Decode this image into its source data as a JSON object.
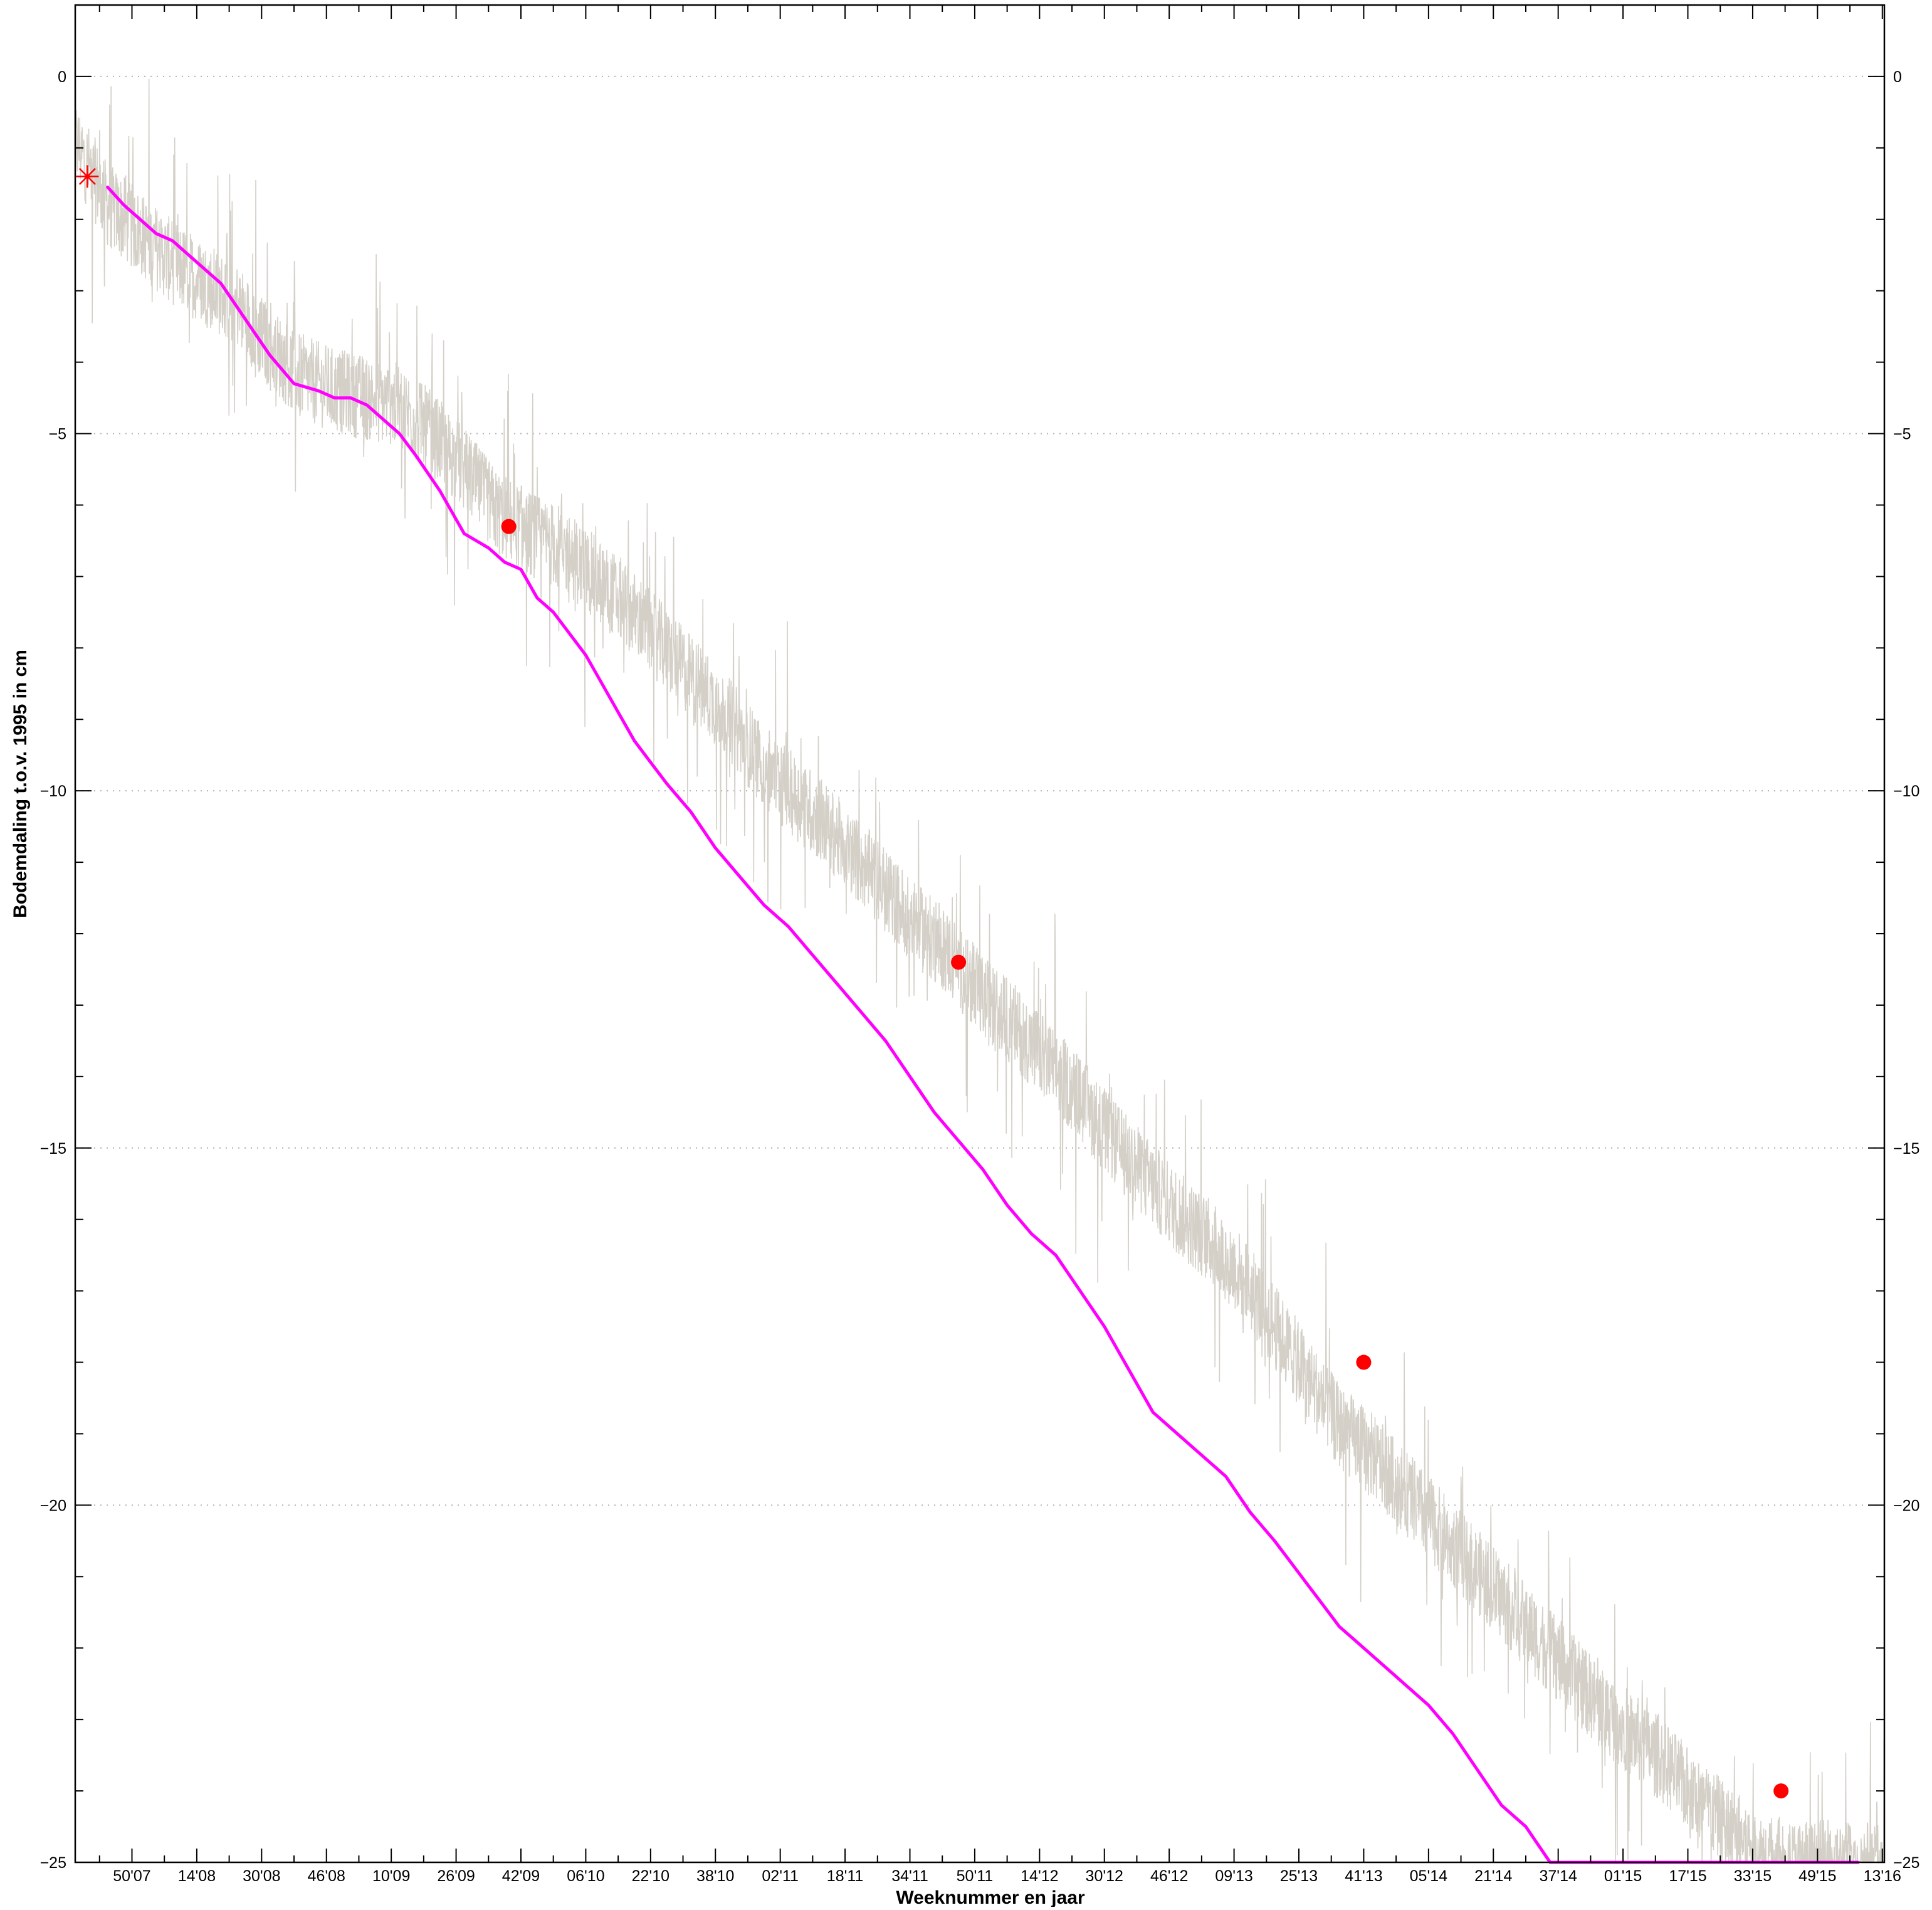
{
  "chart_data": {
    "type": "line",
    "title": "",
    "xlabel": "Weeknummer en jaar",
    "ylabel": "Bodemdaling t.o.v. 1995 in cm",
    "ylim": [
      -25,
      1
    ],
    "yticks": [
      0,
      -5,
      -10,
      -15,
      -20,
      -25
    ],
    "ytick_labels": [
      "0",
      "−5",
      "−10",
      "−15",
      "−20",
      "−25"
    ],
    "x_unit": "weeks since week 36 of 2007",
    "xlim": [
      0,
      446.5
    ],
    "xtick_positions": [
      14,
      30,
      46,
      62,
      78,
      94,
      110,
      126,
      142,
      158,
      174,
      190,
      206,
      222,
      238,
      254,
      270,
      286,
      302,
      318,
      334,
      350,
      366,
      382,
      398,
      414,
      430,
      446
    ],
    "xtick_labels": [
      "50'07",
      "14'08",
      "30'08",
      "46'08",
      "10'09",
      "26'09",
      "42'09",
      "06'10",
      "22'10",
      "38'10",
      "02'11",
      "18'11",
      "34'11",
      "50'11",
      "14'12",
      "30'12",
      "46'12",
      "09'13",
      "25'13",
      "41'13",
      "05'14",
      "21'14",
      "37'14",
      "01'15",
      "17'15",
      "33'15",
      "49'15",
      "13'16"
    ],
    "grid": true,
    "series": [
      {
        "name": "",
        "kind": "raw-measurements",
        "color": "#d4d0c8",
        "x": [
          0,
          8,
          16,
          24,
          32,
          40,
          48,
          56,
          64,
          72,
          80,
          88,
          96,
          104,
          112,
          120,
          128,
          136,
          144,
          152,
          160,
          168,
          176,
          184,
          192,
          200,
          208,
          216,
          224,
          232,
          240,
          248,
          256,
          264,
          272,
          280,
          288,
          296,
          304,
          312,
          320,
          328,
          336,
          344,
          352,
          360,
          368,
          376,
          384,
          392,
          400,
          408,
          416,
          424,
          432,
          440,
          446
        ],
        "y": [
          -0.9,
          -1.8,
          -2.2,
          -2.6,
          -2.9,
          -3.2,
          -3.8,
          -4.2,
          -4.4,
          -4.5,
          -4.6,
          -5.0,
          -5.5,
          -6.1,
          -6.4,
          -6.6,
          -7.0,
          -7.4,
          -7.9,
          -8.4,
          -8.9,
          -9.5,
          -10.0,
          -10.4,
          -10.9,
          -11.4,
          -11.9,
          -12.3,
          -12.9,
          -13.3,
          -13.8,
          -14.3,
          -14.9,
          -15.4,
          -15.9,
          -16.3,
          -16.8,
          -17.5,
          -18.2,
          -18.9,
          -19.3,
          -19.8,
          -20.3,
          -20.8,
          -21.3,
          -21.8,
          -22.3,
          -22.8,
          -23.2,
          -23.6,
          -24.1,
          -24.5,
          -24.9,
          -25.0,
          -25.0,
          -25.0,
          -25.0
        ],
        "noise_amplitude_cm": 0.6
      },
      {
        "name": "",
        "kind": "smoothed-trend",
        "color": "#ff00ff",
        "x": [
          8,
          12,
          16,
          20,
          24,
          30,
          36,
          42,
          48,
          54,
          60,
          64,
          68,
          72,
          76,
          80,
          84,
          90,
          96,
          102,
          106,
          110,
          114,
          118,
          122,
          126,
          130,
          134,
          138,
          142,
          146,
          152,
          158,
          164,
          170,
          176,
          182,
          188,
          194,
          200,
          206,
          212,
          218,
          224,
          230,
          236,
          242,
          248,
          254,
          260,
          266,
          272,
          278,
          284,
          290,
          296,
          300,
          304,
          308,
          312,
          316,
          322,
          328,
          334,
          340,
          346,
          352,
          358,
          364,
          370,
          376,
          382,
          388,
          394,
          400,
          406,
          412,
          418,
          424,
          430,
          436,
          440
        ],
        "y": [
          -1.55,
          -1.8,
          -2.0,
          -2.2,
          -2.3,
          -2.6,
          -2.9,
          -3.4,
          -3.9,
          -4.3,
          -4.4,
          -4.5,
          -4.5,
          -4.6,
          -4.8,
          -5.0,
          -5.3,
          -5.8,
          -6.4,
          -6.6,
          -6.8,
          -6.9,
          -7.3,
          -7.5,
          -7.8,
          -8.1,
          -8.5,
          -8.9,
          -9.3,
          -9.6,
          -9.9,
          -10.3,
          -10.8,
          -11.2,
          -11.6,
          -11.9,
          -12.3,
          -12.7,
          -13.1,
          -13.5,
          -14.0,
          -14.5,
          -14.9,
          -15.3,
          -15.8,
          -16.2,
          -16.5,
          -17.0,
          -17.5,
          -18.1,
          -18.7,
          -19.0,
          -19.3,
          -19.6,
          -20.1,
          -20.5,
          -20.8,
          -21.1,
          -21.4,
          -21.7,
          -21.9,
          -22.2,
          -22.5,
          -22.8,
          -23.2,
          -23.7,
          -24.2,
          -24.5,
          -25.0,
          -25.0,
          -25.0,
          -25.0,
          -25.0,
          -25.0,
          -25.0,
          -25.0,
          -25.0,
          -25.0,
          -25.0,
          -25.0,
          -25.0,
          -25.0
        ]
      }
    ],
    "markers": [
      {
        "kind": "star",
        "color": "#ff0000",
        "x": 3,
        "y": -1.4
      },
      {
        "kind": "dot",
        "color": "#ff0000",
        "x": 107,
        "y": -6.3
      },
      {
        "kind": "dot",
        "color": "#ff0000",
        "x": 218,
        "y": -12.4
      },
      {
        "kind": "dot",
        "color": "#ff0000",
        "x": 318,
        "y": -18.0
      },
      {
        "kind": "dot",
        "color": "#ff0000",
        "x": 421,
        "y": -24.0
      }
    ]
  }
}
